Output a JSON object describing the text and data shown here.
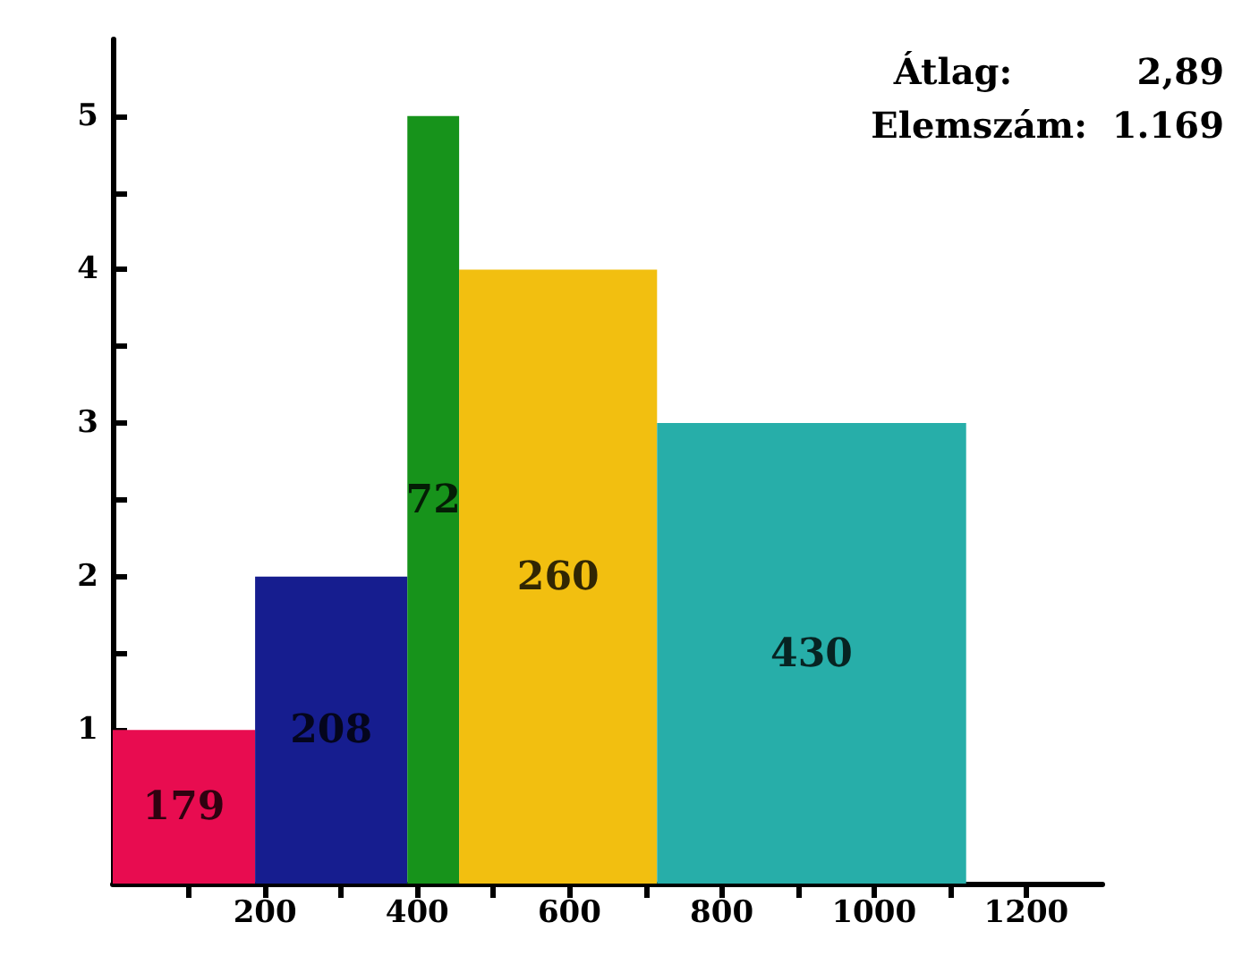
{
  "chart_data": {
    "type": "histogram",
    "bins": [
      0,
      187,
      387,
      455,
      715,
      1121
    ],
    "values": [
      1,
      2,
      5,
      4,
      3
    ],
    "colors": [
      "#e80c50",
      "#161d8f",
      "#17931b",
      "#f2bf10",
      "#27aea9"
    ],
    "xlim": [
      0,
      1300
    ],
    "xticks": [
      {
        "value": 100,
        "label": null
      },
      200,
      {
        "value": 300,
        "label": null
      },
      400,
      {
        "value": 500,
        "label": null
      },
      600,
      {
        "value": 700,
        "label": null
      },
      800,
      {
        "value": 900,
        "label": null
      },
      1000,
      {
        "value": 1100,
        "label": null
      },
      1200
    ],
    "ylim": [
      0,
      5.5
    ],
    "yticks": [
      {
        "value": 0.5,
        "label": null
      },
      1,
      {
        "value": 1.5,
        "label": null
      },
      2,
      {
        "value": 2.5,
        "label": null
      },
      3,
      {
        "value": 3.5,
        "label": null
      },
      4,
      {
        "value": 4.5,
        "label": null
      },
      5
    ],
    "annotations": [
      "Átlag:          2,89",
      "Elemszám:  1.169",
      "179",
      "208",
      "72",
      "260",
      "430"
    ],
    "grid": false
  }
}
